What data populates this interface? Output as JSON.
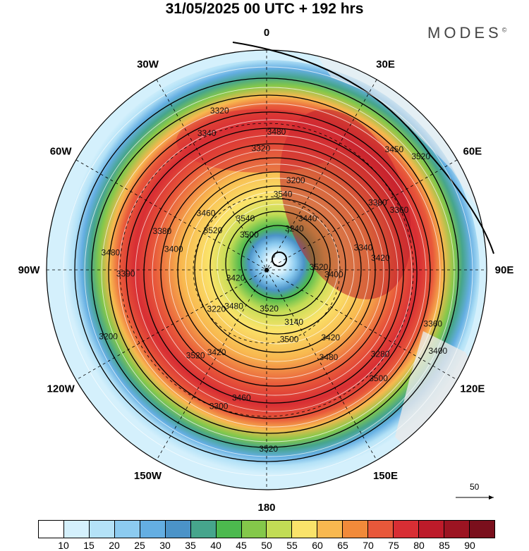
{
  "header": {
    "title": "31/05/2025  00 UTC  + 192 hrs",
    "brand": "MODES",
    "brand_mark": "©"
  },
  "longitude_labels": [
    {
      "text": "0",
      "angle": 0
    },
    {
      "text": "30E",
      "angle": 30
    },
    {
      "text": "60E",
      "angle": 60
    },
    {
      "text": "90E",
      "angle": 90
    },
    {
      "text": "120E",
      "angle": 120
    },
    {
      "text": "150E",
      "angle": 150
    },
    {
      "text": "180",
      "angle": 180
    },
    {
      "text": "150W",
      "angle": 210
    },
    {
      "text": "120W",
      "angle": 240
    },
    {
      "text": "90W",
      "angle": 270
    },
    {
      "text": "60W",
      "angle": 300
    },
    {
      "text": "30W",
      "angle": 330
    }
  ],
  "contour_labels": [
    "3520",
    "3480",
    "3540",
    "3420",
    "3400",
    "3380",
    "3460",
    "3340",
    "3360",
    "3200",
    "3240",
    "3140",
    "3520",
    "3340",
    "3420",
    "3320",
    "3280",
    "3390",
    "3450",
    "3520",
    "3500",
    "3400",
    "3220",
    "3200",
    "3480",
    "3380",
    "3360",
    "3300",
    "3320",
    "3400",
    "3420",
    "3440",
    "3500",
    "3460",
    "3420",
    "3520",
    "3480",
    "3500",
    "3480",
    "3520",
    "3520",
    "3540"
  ],
  "reference_vector": {
    "label": "50"
  },
  "colorbar": {
    "ticks": [
      "10",
      "15",
      "20",
      "25",
      "30",
      "35",
      "40",
      "45",
      "50",
      "55",
      "60",
      "65",
      "70",
      "75",
      "80",
      "85",
      "90"
    ],
    "colors": [
      "#ffffff",
      "#d4f0fc",
      "#b4e2f7",
      "#8ccbf0",
      "#64aee2",
      "#4b93c8",
      "#46a58c",
      "#4cb94e",
      "#84c84a",
      "#c2dc55",
      "#fae36a",
      "#f8b84f",
      "#f18a3a",
      "#e8583a",
      "#d82e34",
      "#bd1b2a",
      "#9c1422",
      "#7a0f1c"
    ]
  }
}
